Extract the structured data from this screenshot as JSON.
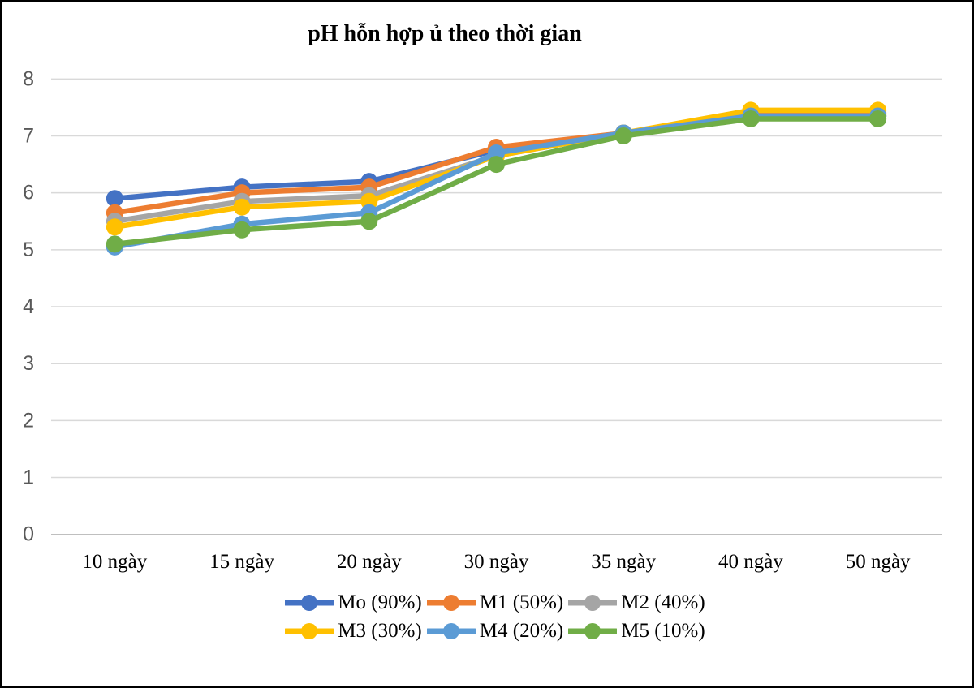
{
  "window": {
    "background": "#ffffff",
    "frame_border_color": "#000000"
  },
  "chart_data": {
    "type": "line",
    "title": "pH hỗn hợp ủ theo thời gian",
    "categories": [
      "10 ngày",
      "15 ngày",
      "20 ngày",
      "30 ngày",
      "35 ngày",
      "40 ngày",
      "50 ngày"
    ],
    "series": [
      {
        "name": "Mo (90%)",
        "color": "#4472C4",
        "values": [
          5.9,
          6.1,
          6.2,
          6.75,
          7.05,
          7.35,
          7.35
        ]
      },
      {
        "name": "M1 (50%)",
        "color": "#ED7D31",
        "values": [
          5.65,
          6.0,
          6.1,
          6.8,
          7.05,
          7.4,
          7.4
        ]
      },
      {
        "name": "M2 (40%)",
        "color": "#A5A5A5",
        "values": [
          5.5,
          5.85,
          5.95,
          6.65,
          7.05,
          7.35,
          7.35
        ]
      },
      {
        "name": "M3 (30%)",
        "color": "#FFC000",
        "values": [
          5.4,
          5.75,
          5.85,
          6.65,
          7.05,
          7.45,
          7.45
        ]
      },
      {
        "name": "M4 (20%)",
        "color": "#5B9BD5",
        "values": [
          5.05,
          5.45,
          5.65,
          6.7,
          7.05,
          7.35,
          7.35
        ]
      },
      {
        "name": "M5 (10%)",
        "color": "#70AD47",
        "values": [
          5.1,
          5.35,
          5.5,
          6.5,
          7.0,
          7.3,
          7.3
        ]
      }
    ],
    "y_axis": {
      "min": 0,
      "max": 8,
      "ticks": [
        8,
        7,
        6,
        5,
        4,
        3,
        2,
        1,
        0
      ]
    },
    "grid": true,
    "legend_position": "bottom",
    "legend_rows": [
      [
        "Mo (90%)",
        "M1 (50%)",
        "M2 (40%)"
      ],
      [
        "M3 (30%)",
        "M4 (20%)",
        "M5 (10%)"
      ]
    ]
  },
  "colors": {
    "gridline": "#D9D9D9",
    "axis_line": "#BFBFBF",
    "y_tick_label": "#595959",
    "x_tick_label": "#000000",
    "title_text": "#000000"
  }
}
